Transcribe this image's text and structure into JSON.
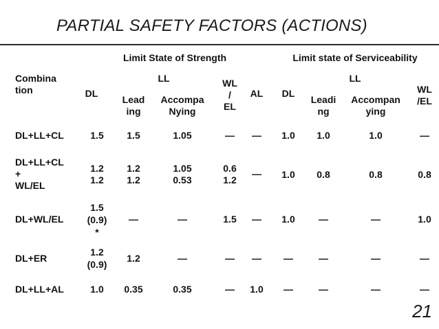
{
  "title": "PARTIAL SAFETY FACTORS (ACTIONS)",
  "page_number": "21",
  "group_headers": {
    "strength": "Limit State of Strength",
    "serviceability": "Limit state of Serviceability"
  },
  "col_headers": {
    "combination": "Combina\ntion",
    "dl": "DL",
    "ll_strength": "LL",
    "leading": "Lead\ning",
    "accompanying": "Accompa\nNying",
    "wl_el": "WL\n/\nEL",
    "al": "AL",
    "dl_s": "DL",
    "ll_service": "LL",
    "leading_s": "Leadi\nng",
    "accompanying_s": "Accompan\nying",
    "wl_el_s": "WL\n/EL"
  },
  "rows": [
    {
      "combination": "DL+LL+CL",
      "dl": "1.5",
      "leading": "1.5",
      "accompanying": "1.05",
      "wl_el": "—",
      "al": "—",
      "dl_s": "1.0",
      "leading_s": "1.0",
      "accompanying_s": "1.0",
      "wl_el_s": "—"
    },
    {
      "combination": "DL+LL+CL\n+\nWL/EL",
      "dl": "1.2\n1.2",
      "leading": "1.2\n1.2",
      "accompanying": "1.05\n0.53",
      "wl_el": "0.6\n1.2",
      "al": "—",
      "dl_s": "1.0",
      "leading_s": "0.8",
      "accompanying_s": "0.8",
      "wl_el_s": "0.8"
    },
    {
      "combination": "DL+WL/EL",
      "dl": "1.5\n(0.9)\n*",
      "leading": "—",
      "accompanying": "—",
      "wl_el": "1.5",
      "al": "—",
      "dl_s": "1.0",
      "leading_s": "—",
      "accompanying_s": "—",
      "wl_el_s": "1.0"
    },
    {
      "combination": "DL+ER",
      "dl": "1.2\n(0.9)",
      "leading": "1.2",
      "accompanying": "—",
      "wl_el": "—",
      "al": "—",
      "dl_s": "—",
      "leading_s": "—",
      "accompanying_s": "—",
      "wl_el_s": "—"
    },
    {
      "combination": "DL+LL+AL",
      "dl": "1.0",
      "leading": "0.35",
      "accompanying": "0.35",
      "wl_el": "—",
      "al": "1.0",
      "dl_s": "—",
      "leading_s": "—",
      "accompanying_s": "—",
      "wl_el_s": "—"
    }
  ]
}
